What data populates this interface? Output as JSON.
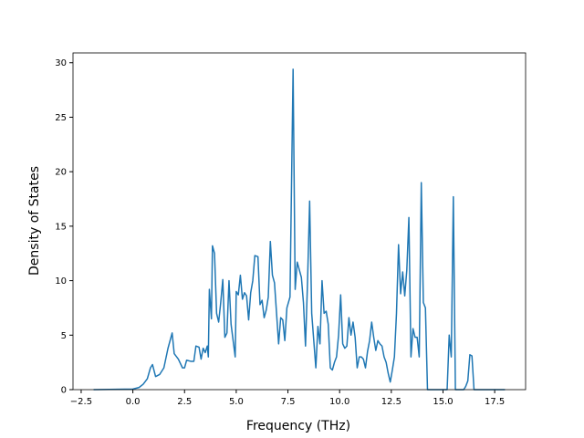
{
  "chart_data": {
    "type": "line",
    "xlabel": "Frequency (THz)",
    "ylabel": "Density of States",
    "x": [
      -1.9,
      0.0,
      0.3,
      0.5,
      0.7,
      0.85,
      0.95,
      1.1,
      1.3,
      1.5,
      1.7,
      1.9,
      2.0,
      2.2,
      2.4,
      2.5,
      2.6,
      2.8,
      2.95,
      3.05,
      3.2,
      3.3,
      3.4,
      3.5,
      3.6,
      3.65,
      3.7,
      3.8,
      3.85,
      3.95,
      4.05,
      4.15,
      4.25,
      4.35,
      4.45,
      4.55,
      4.65,
      4.75,
      4.85,
      4.95,
      5.0,
      5.1,
      5.2,
      5.3,
      5.4,
      5.5,
      5.6,
      5.7,
      5.8,
      5.9,
      6.05,
      6.15,
      6.25,
      6.35,
      6.45,
      6.55,
      6.65,
      6.75,
      6.85,
      6.95,
      7.05,
      7.15,
      7.25,
      7.35,
      7.45,
      7.6,
      7.75,
      7.85,
      7.95,
      8.05,
      8.15,
      8.25,
      8.35,
      8.45,
      8.55,
      8.65,
      8.75,
      8.85,
      8.95,
      9.05,
      9.15,
      9.25,
      9.35,
      9.45,
      9.55,
      9.65,
      9.75,
      9.85,
      9.95,
      10.05,
      10.15,
      10.25,
      10.35,
      10.45,
      10.55,
      10.65,
      10.75,
      10.85,
      10.95,
      11.05,
      11.15,
      11.25,
      11.35,
      11.45,
      11.55,
      11.65,
      11.75,
      11.85,
      11.95,
      12.05,
      12.15,
      12.25,
      12.35,
      12.45,
      12.55,
      12.65,
      12.75,
      12.85,
      12.95,
      13.05,
      13.15,
      13.25,
      13.35,
      13.45,
      13.55,
      13.65,
      13.75,
      13.85,
      13.95,
      14.05,
      14.15,
      14.25,
      15.2,
      15.3,
      15.4,
      15.5,
      15.6,
      16.0,
      16.1,
      16.2,
      16.3,
      16.4,
      16.5,
      18.0
    ],
    "series": [
      {
        "name": "Density of States",
        "color": "#1f77b4",
        "values": [
          0,
          0.05,
          0.2,
          0.5,
          1.0,
          2.0,
          2.3,
          1.2,
          1.4,
          2.0,
          3.8,
          5.2,
          3.3,
          2.8,
          2.0,
          2.0,
          2.7,
          2.6,
          2.6,
          4.0,
          3.9,
          2.8,
          3.8,
          3.4,
          4.0,
          3.0,
          9.2,
          6.5,
          13.2,
          12.5,
          7.0,
          6.2,
          8.0,
          10.1,
          4.8,
          5.2,
          10.0,
          6.0,
          4.5,
          3.0,
          9.0,
          8.7,
          10.5,
          8.3,
          8.9,
          8.6,
          6.4,
          8.9,
          10.0,
          12.3,
          12.2,
          7.8,
          8.2,
          6.6,
          7.3,
          8.5,
          13.6,
          10.5,
          9.8,
          7.0,
          4.2,
          6.6,
          6.4,
          4.5,
          7.5,
          8.5,
          29.4,
          9.2,
          11.7,
          11.0,
          10.3,
          8.0,
          4.0,
          10.0,
          17.3,
          7.0,
          4.5,
          2.0,
          5.8,
          4.2,
          10.0,
          7.0,
          7.2,
          6.0,
          2.0,
          1.8,
          2.5,
          3.0,
          5.0,
          8.7,
          4.2,
          3.8,
          4.0,
          6.6,
          5.0,
          6.2,
          4.8,
          2.0,
          3.0,
          3.0,
          2.8,
          2.0,
          3.5,
          4.5,
          6.2,
          4.8,
          3.6,
          4.5,
          4.2,
          4.0,
          3.0,
          2.5,
          1.5,
          0.7,
          1.8,
          3.0,
          7.0,
          13.3,
          8.8,
          10.8,
          8.6,
          11.0,
          15.8,
          3.0,
          5.6,
          4.8,
          4.8,
          3.0,
          19.0,
          8.0,
          7.5,
          0,
          0,
          5.0,
          3.0,
          17.7,
          0,
          0,
          0.3,
          0.8,
          3.2,
          3.1,
          0,
          0
        ]
      }
    ],
    "xlim": [
      -2.895,
      18.995
    ],
    "ylim": [
      0,
      30.9
    ],
    "xticks": [
      {
        "value": -2.5,
        "label": "−2.5"
      },
      {
        "value": 0,
        "label": "0.0"
      },
      {
        "value": 2.5,
        "label": "2.5"
      },
      {
        "value": 5,
        "label": "5.0"
      },
      {
        "value": 7.5,
        "label": "7.5"
      },
      {
        "value": 10,
        "label": "10.0"
      },
      {
        "value": 12.5,
        "label": "12.5"
      },
      {
        "value": 15,
        "label": "15.0"
      },
      {
        "value": 17.5,
        "label": "17.5"
      }
    ],
    "yticks": [
      0,
      5,
      10,
      15,
      20,
      25,
      30
    ]
  }
}
